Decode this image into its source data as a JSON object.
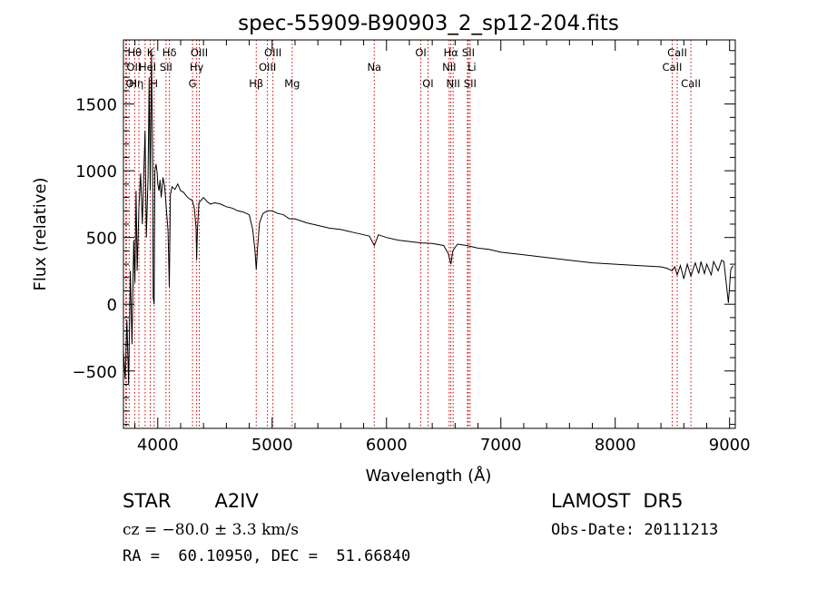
{
  "chart_data": {
    "type": "line",
    "title": "spec-55909-B90903_2_sp12-204.fits",
    "xlabel": "Wavelength (Å)",
    "ylabel": "Flux (relative)",
    "xlim": [
      3700,
      9050
    ],
    "ylim": [
      -930,
      1980
    ],
    "x_ticks": [
      4000,
      5000,
      6000,
      7000,
      8000,
      9000
    ],
    "y_ticks": [
      -500,
      0,
      500,
      1000,
      1500
    ],
    "x_tick_labels": [
      "4000",
      "5000",
      "6000",
      "7000",
      "8000",
      "9000"
    ],
    "y_tick_labels": [
      "−500",
      "0",
      "500",
      "1000",
      "1500"
    ],
    "series": [
      {
        "x": [
          3700,
          3715,
          3730,
          3745,
          3760,
          3775,
          3790,
          3800,
          3810,
          3820,
          3835,
          3850,
          3865,
          3880,
          3889,
          3900,
          3915,
          3925,
          3934,
          3945,
          3955,
          3960,
          3968,
          3975,
          3985,
          3995,
          4000,
          4010,
          4020,
          4030,
          4045,
          4060,
          4075,
          4090,
          4101,
          4110,
          4125,
          4150,
          4175,
          4200,
          4225,
          4250,
          4275,
          4300,
          4320,
          4335,
          4340,
          4347,
          4360,
          4380,
          4400,
          4430,
          4460,
          4500,
          4550,
          4600,
          4650,
          4700,
          4750,
          4800,
          4830,
          4850,
          4861,
          4872,
          4890,
          4920,
          4960,
          5000,
          5050,
          5100,
          5150,
          5200,
          5300,
          5400,
          5500,
          5600,
          5700,
          5800,
          5850,
          5893,
          5930,
          6000,
          6100,
          6200,
          6300,
          6400,
          6500,
          6540,
          6563,
          6580,
          6620,
          6700,
          6800,
          6900,
          7000,
          7200,
          7400,
          7600,
          7800,
          8000,
          8200,
          8400,
          8450,
          8498,
          8520,
          8542,
          8570,
          8600,
          8630,
          8662,
          8700,
          8730,
          8750,
          8780,
          8800,
          8840,
          8860,
          8900,
          8930,
          8950,
          8990,
          9010,
          9030
        ],
        "y": [
          -350,
          -560,
          -120,
          -600,
          250,
          -300,
          480,
          160,
          850,
          250,
          720,
          980,
          600,
          1050,
          1300,
          500,
          950,
          1700,
          850,
          1900,
          1100,
          50,
          0,
          1000,
          1050,
          980,
          900,
          850,
          930,
          800,
          950,
          880,
          720,
          550,
          130,
          820,
          880,
          860,
          900,
          850,
          840,
          810,
          790,
          780,
          720,
          570,
          330,
          560,
          760,
          780,
          800,
          770,
          750,
          760,
          750,
          730,
          720,
          700,
          690,
          670,
          560,
          400,
          260,
          420,
          610,
          680,
          700,
          700,
          680,
          670,
          640,
          640,
          610,
          590,
          570,
          560,
          540,
          520,
          510,
          440,
          520,
          500,
          480,
          470,
          460,
          455,
          440,
          380,
          300,
          400,
          450,
          440,
          420,
          410,
          390,
          370,
          350,
          330,
          310,
          300,
          290,
          280,
          270,
          250,
          280,
          220,
          290,
          190,
          300,
          210,
          310,
          230,
          320,
          230,
          300,
          220,
          320,
          250,
          330,
          320,
          10,
          260,
          290
        ]
      }
    ],
    "lines": [
      {
        "wl": 3720,
        "labels": [
          "OI"
        ],
        "row": 3,
        "align": "start"
      },
      {
        "wl": 3727,
        "labels": [
          "OII"
        ],
        "row": 2,
        "align": "start"
      },
      {
        "wl": 3750,
        "labels": [
          "Hη"
        ],
        "row": 3,
        "align": "start"
      },
      {
        "wl": 3798,
        "labels": [
          "Hθ"
        ],
        "row": 1,
        "align": "middle"
      },
      {
        "wl": 3835,
        "labels": [
          "HeI"
        ],
        "row": 2,
        "align": "start"
      },
      {
        "wl": 3889,
        "labels": [],
        "row": 0,
        "align": "middle"
      },
      {
        "wl": 3934,
        "labels": [
          "K"
        ],
        "row": 1,
        "align": "middle"
      },
      {
        "wl": 3968,
        "labels": [
          "H"
        ],
        "row": 3,
        "align": "middle"
      },
      {
        "wl": 4072,
        "labels": [
          "SII"
        ],
        "row": 2,
        "align": "middle"
      },
      {
        "wl": 4102,
        "labels": [
          "Hδ"
        ],
        "row": 1,
        "align": "middle"
      },
      {
        "wl": 4304,
        "labels": [
          "G"
        ],
        "row": 3,
        "align": "middle"
      },
      {
        "wl": 4340,
        "labels": [
          "Hγ"
        ],
        "row": 2,
        "align": "middle"
      },
      {
        "wl": 4363,
        "labels": [
          "OIII"
        ],
        "row": 1,
        "align": "middle"
      },
      {
        "wl": 4861,
        "labels": [
          "Hβ"
        ],
        "row": 3,
        "align": "middle"
      },
      {
        "wl": 4959,
        "labels": [
          "OIII"
        ],
        "row": 2,
        "align": "middle"
      },
      {
        "wl": 5007,
        "labels": [
          "OIII"
        ],
        "row": 1,
        "align": "middle"
      },
      {
        "wl": 5175,
        "labels": [
          "Mg"
        ],
        "row": 3,
        "align": "middle"
      },
      {
        "wl": 5893,
        "labels": [
          "Na"
        ],
        "row": 2,
        "align": "middle"
      },
      {
        "wl": 6300,
        "labels": [
          "OI"
        ],
        "row": 1,
        "align": "middle"
      },
      {
        "wl": 6363,
        "labels": [
          "OI"
        ],
        "row": 3,
        "align": "middle"
      },
      {
        "wl": 6548,
        "labels": [
          "NII"
        ],
        "row": 2,
        "align": "middle"
      },
      {
        "wl": 6563,
        "labels": [
          "Hα"
        ],
        "row": 1,
        "align": "middle"
      },
      {
        "wl": 6583,
        "labels": [
          "NII"
        ],
        "row": 3,
        "align": "middle"
      },
      {
        "wl": 6708,
        "labels": [
          "Li"
        ],
        "row": 2,
        "align": "start"
      },
      {
        "wl": 6716,
        "labels": [
          "SII"
        ],
        "row": 1,
        "align": "middle"
      },
      {
        "wl": 6731,
        "labels": [
          "SII"
        ],
        "row": 3,
        "align": "middle"
      },
      {
        "wl": 8498,
        "labels": [
          "CaII"
        ],
        "row": 2,
        "align": "middle"
      },
      {
        "wl": 8542,
        "labels": [
          "CaII"
        ],
        "row": 1,
        "align": "middle"
      },
      {
        "wl": 8662,
        "labels": [
          "CaII"
        ],
        "row": 3,
        "align": "middle"
      }
    ],
    "colors": {
      "line_marker": "#cc0000",
      "spectrum": "#000000",
      "axes": "#000000"
    }
  },
  "info": {
    "object_type": "STAR",
    "subclass": "A2IV",
    "survey": "LAMOST",
    "release": "DR5",
    "cz": "cz = −80.0 ± 3.3 km/s",
    "obs_date": "Obs-Date: 20111213",
    "coords": "RA =  60.10950, DEC =  51.66840"
  }
}
